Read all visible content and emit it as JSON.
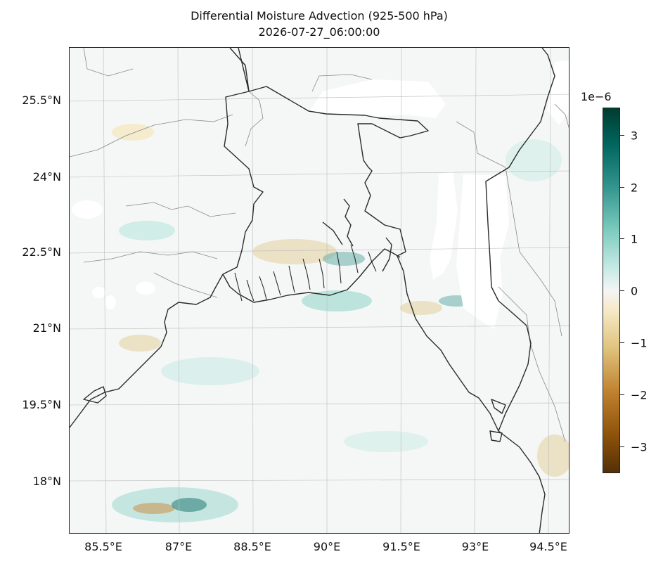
{
  "map": {
    "title_line1": "Differential Moisture Advection (925-500 hPa)",
    "title_line2": "2026-07-27_06:00:00",
    "lat_labels": [
      "25.5°N",
      "24°N",
      "22.5°N",
      "21°N",
      "19.5°N",
      "18°N"
    ],
    "lon_labels": [
      "85.5°E",
      "87°E",
      "88.5°E",
      "90°E",
      "91.5°E",
      "93°E",
      "94.5°E"
    ],
    "region": "Bangladesh / Bay of Bengal",
    "colormap": "BrBG"
  },
  "colorbar": {
    "exponent_label": "1e−6",
    "tick_labels": [
      "3",
      "2",
      "1",
      "0",
      "−1",
      "−2",
      "−3"
    ],
    "range": [
      -3.5,
      3.5
    ],
    "colors": {
      "max": "#003c30",
      "mid": "#f5f5f5",
      "min": "#543005"
    }
  }
}
